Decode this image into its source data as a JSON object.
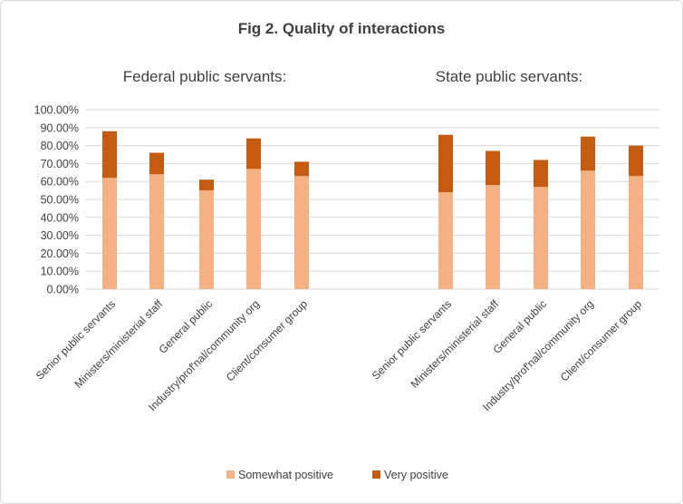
{
  "chart_data": {
    "type": "bar",
    "stacked": true,
    "title": "Fig 2. Quality of interactions",
    "xlabel": "",
    "ylabel": "",
    "ylim": [
      0,
      100
    ],
    "yticks": [
      "0.00%",
      "10.00%",
      "20.00%",
      "30.00%",
      "40.00%",
      "50.00%",
      "60.00%",
      "70.00%",
      "80.00%",
      "90.00%",
      "100.00%"
    ],
    "grid": true,
    "legend_position": "bottom",
    "colors": {
      "Somewhat positive": "#f4b183",
      "Very positive": "#c55a11"
    },
    "groups": [
      {
        "title": "Federal public servants:",
        "categories": [
          "Senior public servants",
          "Ministers/ministerial staff",
          "General public",
          "Industry/prof'nal/community org",
          "Client/consumer group"
        ],
        "series": [
          {
            "name": "Somewhat positive",
            "values": [
              62,
              64,
              55,
              67,
              63
            ]
          },
          {
            "name": "Very positive",
            "values": [
              26,
              12,
              6,
              17,
              8
            ]
          }
        ]
      },
      {
        "title": "State public servants:",
        "categories": [
          "Senior public servants",
          "Ministers/ministerial staff",
          "General public",
          "Industry/prof'nal/community org",
          "Client/consumer group"
        ],
        "series": [
          {
            "name": "Somewhat positive",
            "values": [
              54,
              58,
              57,
              66,
              63
            ]
          },
          {
            "name": "Very positive",
            "values": [
              32,
              19,
              15,
              19,
              17
            ]
          }
        ]
      }
    ],
    "legend": [
      "Somewhat positive",
      "Very positive"
    ]
  }
}
